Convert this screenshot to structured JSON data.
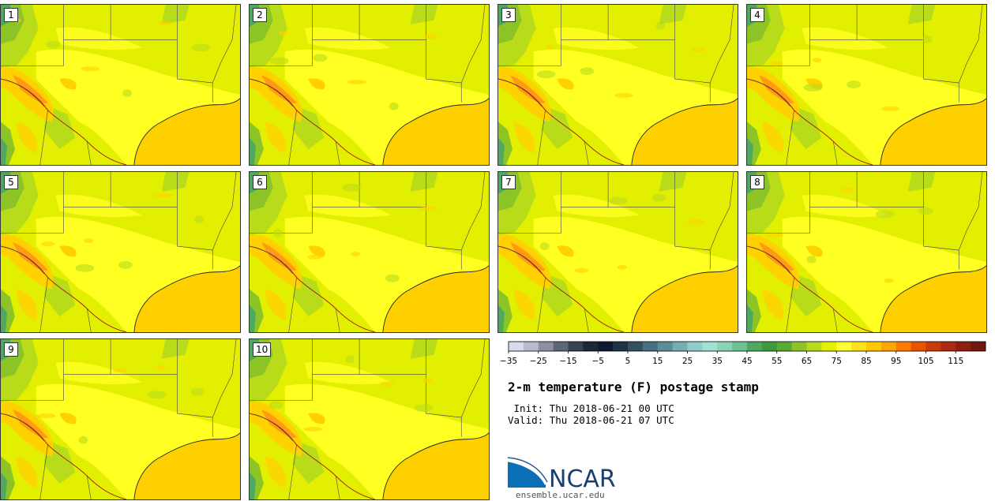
{
  "title": "2-m temperature (F) postage stamp",
  "init_line": " Init: Thu 2018-06-21 00 UTC",
  "valid_line": "Valid: Thu 2018-06-21 07 UTC",
  "logo_text": "NCAR",
  "logo_url": "ensemble.ucar.edu",
  "members": [
    "1",
    "2",
    "3",
    "4",
    "5",
    "6",
    "7",
    "8",
    "9",
    "10"
  ],
  "colorbar": {
    "tick_labels": [
      "−35",
      "−25",
      "−15",
      "−5",
      "5",
      "15",
      "25",
      "35",
      "45",
      "55",
      "65",
      "75",
      "85",
      "95",
      "105",
      "115"
    ],
    "colors": [
      "#d8dcea",
      "#b8bbcc",
      "#8c90a3",
      "#5f6579",
      "#39404f",
      "#1e2638",
      "#0e1a33",
      "#1f3347",
      "#33505f",
      "#477080",
      "#5a8d97",
      "#74adb2",
      "#8fcdcb",
      "#a2e0d3",
      "#8ad3b3",
      "#6dc090",
      "#4fa85f",
      "#3f9a3a",
      "#5aa932",
      "#8cc428",
      "#b8dc1a",
      "#e4f000",
      "#ffff33",
      "#ffe11a",
      "#ffc800",
      "#ffa500",
      "#ff7a00",
      "#e85300",
      "#c93a0d",
      "#aa2a12",
      "#8c1f12",
      "#6e180f"
    ]
  },
  "map_colors": {
    "land_base": "#e3ef00",
    "warm": "#ffff22",
    "hot": "#ffd100",
    "very_hot": "#ff9a15",
    "ocean": "#ffd000",
    "cool": "#b8dc1a",
    "cooler": "#8cc428",
    "coolest": "#4fa85f",
    "border": "#444444"
  }
}
